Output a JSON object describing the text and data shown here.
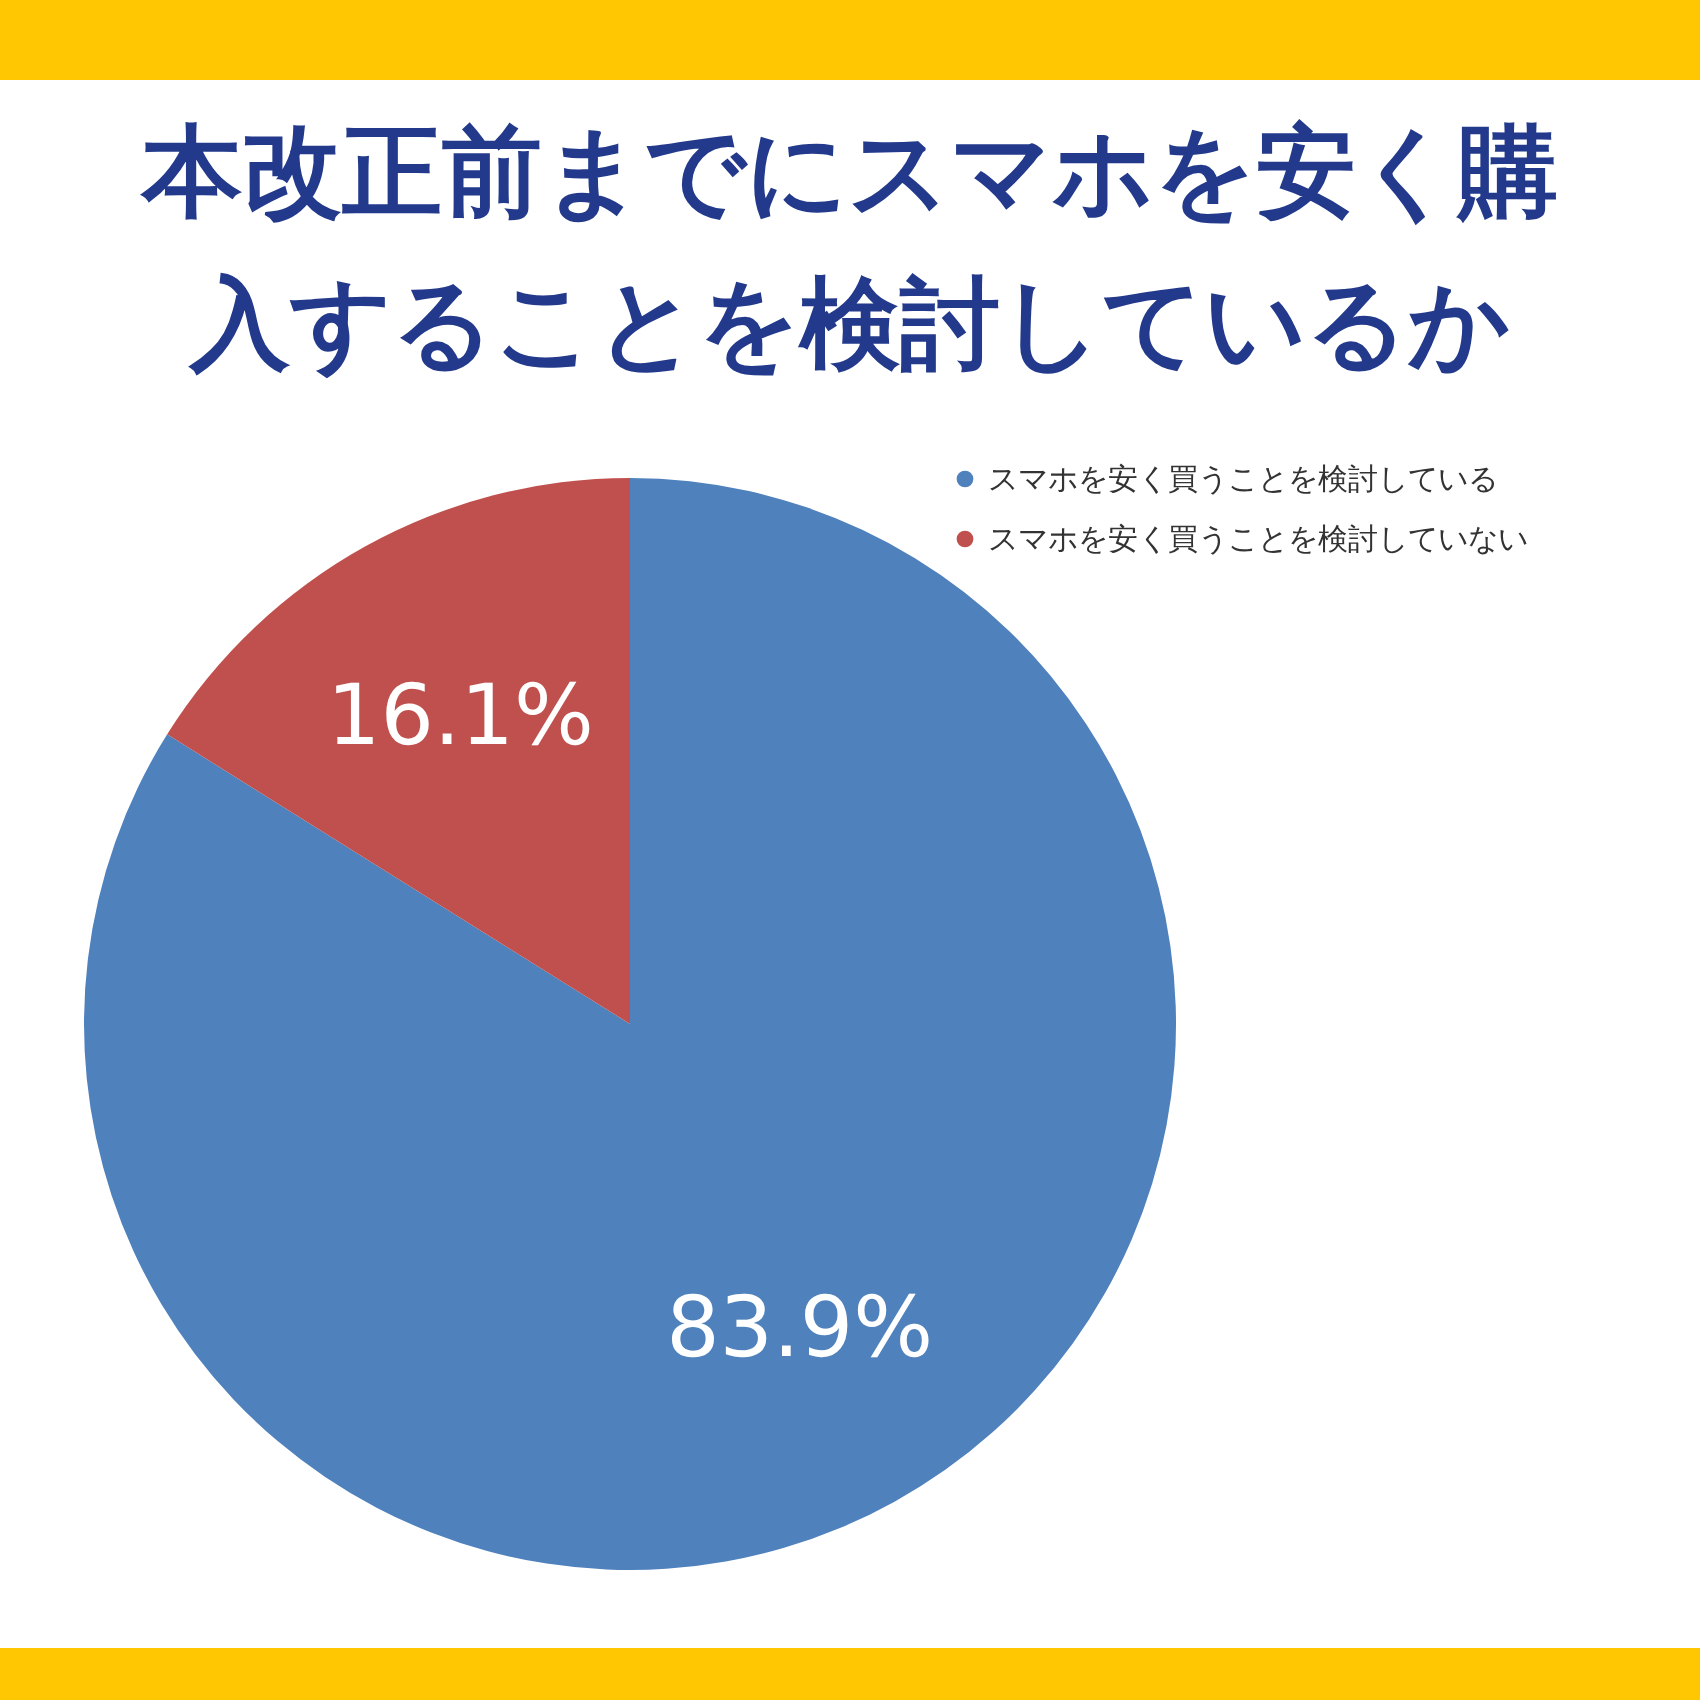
{
  "chart_data": {
    "type": "pie",
    "title": "本改正前までにスマホを安く購入することを検討しているか",
    "categories": [
      "スマホを安く買うことを検討している",
      "スマホを安く買うことを検討していない"
    ],
    "values": [
      83.9,
      16.1
    ],
    "colors": [
      "#4f81bd",
      "#c0504d"
    ],
    "value_labels": [
      "83.9%",
      "16.1%"
    ],
    "legend": "top right"
  }
}
